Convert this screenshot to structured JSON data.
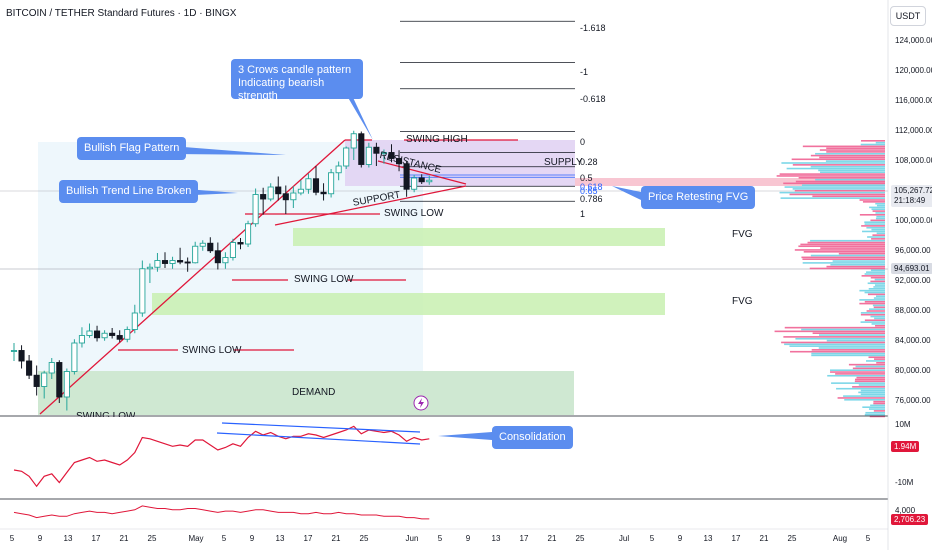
{
  "header": {
    "symbol": "BITCOIN / TETHER Standard Futures · 1D · BINGX",
    "currency": "USDT"
  },
  "colors": {
    "up": "#26a69a",
    "down": "#131722",
    "trend": "#e0173a",
    "fvg": "#c8f0b0",
    "demand": "#cfe8d2",
    "supply": "#e1d3f3",
    "callout": "#5b8def",
    "rsi": "#e0173a",
    "consolidation": "#2962ff"
  },
  "chart_data": {
    "type": "candlestick",
    "ylim": [
      74000,
      128000
    ],
    "price_ticks": [
      "124,000.00",
      "120,000.00",
      "116,000.00",
      "112,000.00",
      "108,000.00",
      "100,000.00",
      "96,000.00",
      "92,000.00",
      "88,000.00",
      "84,000.00",
      "80,000.00",
      "76,000.00"
    ],
    "price_tick_values": [
      124000,
      120000,
      116000,
      112000,
      108000,
      100000,
      96000,
      92000,
      88000,
      84000,
      80000,
      76000
    ],
    "x_ticks": [
      "5",
      "9",
      "13",
      "17",
      "21",
      "25",
      "May",
      "5",
      "9",
      "13",
      "17",
      "21",
      "25",
      "Jun",
      "5",
      "9",
      "13",
      "17",
      "21",
      "25",
      "Jul",
      "5",
      "9",
      "13",
      "17",
      "21",
      "25",
      "Aug",
      "5"
    ],
    "current_price": {
      "value": 105267.72,
      "label": "105,267.72",
      "countdown": "21:18:49"
    },
    "level_price": {
      "value": 94693.01,
      "label": "94,693.01"
    },
    "candles": [
      [
        82500,
        83600,
        81200,
        82600
      ],
      [
        82600,
        83300,
        80200,
        81200
      ],
      [
        81200,
        82000,
        78800,
        79300
      ],
      [
        79300,
        80600,
        76600,
        77800
      ],
      [
        77800,
        79900,
        76200,
        79600
      ],
      [
        79600,
        81600,
        78800,
        81000
      ],
      [
        81000,
        81300,
        75600,
        76400
      ],
      [
        76400,
        80200,
        74600,
        79800
      ],
      [
        79800,
        84100,
        79400,
        83600
      ],
      [
        83600,
        85700,
        83000,
        84600
      ],
      [
        84600,
        86200,
        84300,
        85200
      ],
      [
        85200,
        85900,
        83800,
        84300
      ],
      [
        84300,
        85300,
        83900,
        84900
      ],
      [
        84900,
        85600,
        84200,
        84600
      ],
      [
        84600,
        85300,
        83700,
        84100
      ],
      [
        84100,
        85800,
        83700,
        85400
      ],
      [
        85400,
        88700,
        84900,
        87600
      ],
      [
        87600,
        94600,
        87100,
        93500
      ],
      [
        93500,
        94200,
        91600,
        93700
      ],
      [
        93700,
        95600,
        93100,
        94600
      ],
      [
        94600,
        95700,
        93600,
        94200
      ],
      [
        94200,
        95100,
        93500,
        94600
      ],
      [
        94600,
        96300,
        94100,
        94400
      ],
      [
        94400,
        95000,
        93100,
        94300
      ],
      [
        94300,
        97100,
        94200,
        96500
      ],
      [
        96500,
        97300,
        95900,
        96900
      ],
      [
        96900,
        97700,
        95600,
        95900
      ],
      [
        95900,
        97000,
        93400,
        94300
      ],
      [
        94300,
        95700,
        93500,
        95000
      ],
      [
        95000,
        97500,
        94600,
        97000
      ],
      [
        97000,
        97600,
        96100,
        96800
      ],
      [
        96800,
        99900,
        96400,
        99500
      ],
      [
        99500,
        104200,
        99100,
        103400
      ],
      [
        103400,
        104300,
        100700,
        102800
      ],
      [
        102800,
        104900,
        102500,
        104400
      ],
      [
        104400,
        105800,
        102600,
        103500
      ],
      [
        103500,
        104600,
        100800,
        102700
      ],
      [
        102700,
        104500,
        101600,
        103600
      ],
      [
        103600,
        105300,
        103300,
        104100
      ],
      [
        104100,
        106200,
        103500,
        105500
      ],
      [
        105500,
        107200,
        103300,
        103700
      ],
      [
        103700,
        104900,
        102600,
        103500
      ],
      [
        103500,
        106800,
        103000,
        106300
      ],
      [
        106300,
        107800,
        105300,
        107200
      ],
      [
        107200,
        109800,
        106800,
        109600
      ],
      [
        109600,
        111900,
        108000,
        111500
      ],
      [
        111500,
        111800,
        107000,
        107400
      ],
      [
        107400,
        110300,
        107000,
        109700
      ],
      [
        109700,
        110300,
        107200,
        108900
      ],
      [
        108900,
        109400,
        107500,
        109000
      ],
      [
        109000,
        110100,
        107700,
        108200
      ],
      [
        108200,
        109300,
        106500,
        107500
      ],
      [
        107500,
        107800,
        103100,
        104100
      ],
      [
        104100,
        106000,
        103700,
        105600
      ],
      [
        105600,
        106100,
        104800,
        105100
      ],
      [
        105100,
        105900,
        104700,
        105300
      ]
    ],
    "rsi": [
      60,
      59,
      55,
      47,
      55,
      57,
      50,
      58,
      66,
      68,
      70,
      67,
      68,
      66,
      64,
      68,
      74,
      86,
      85,
      83,
      81,
      79,
      80,
      79,
      84,
      84,
      80,
      76,
      78,
      81,
      79,
      86,
      91,
      88,
      90,
      87,
      85,
      87,
      87,
      89,
      88,
      86,
      88,
      90,
      92,
      95,
      89,
      92,
      91,
      90,
      91,
      88,
      83,
      86,
      84,
      85
    ],
    "volume": [
      52,
      51,
      50,
      48,
      49,
      50,
      49,
      49,
      51,
      52,
      53,
      52,
      52,
      51,
      52,
      53,
      54,
      57,
      56,
      55,
      55,
      54,
      54,
      55,
      55,
      54,
      53,
      52,
      53,
      53,
      52,
      53,
      54,
      54,
      53,
      52,
      52,
      52,
      51,
      51,
      52,
      51,
      51,
      52,
      51,
      51,
      50,
      50,
      50,
      49,
      49,
      49,
      48,
      48,
      47,
      47
    ],
    "fib_levels": [
      {
        "label": "-1.618",
        "value": 126500
      },
      {
        "label": "-1",
        "value": 121000
      },
      {
        "label": "-0.618",
        "value": 117500
      },
      {
        "label": "0",
        "value": 111800
      },
      {
        "label": "0.28",
        "value": 109000
      },
      {
        "label": "0.5",
        "value": 107100
      },
      {
        "label": "0.618",
        "value": 106000
      },
      {
        "label": "0.65",
        "value": 105700
      },
      {
        "label": "0.786",
        "value": 104500
      },
      {
        "label": "1",
        "value": 102500
      }
    ]
  },
  "annotations": {
    "three_crows": "3 Crows candle pattern Indicating bearish strength",
    "bullish_flag": "Bullish Flag Pattern",
    "trend_broken": "Bullish Trend Line Broken",
    "retesting": "Price Retesting FVG",
    "consolidation": "Consolidation",
    "swing_high": "SWING HIGH",
    "resistance": "RESISTANCE",
    "support": "SUPPORT",
    "supply": "SUPPLY",
    "swing_low_1": "SWING LOW",
    "swing_low_2": "SWING LOW",
    "swing_low_3": "SWING LOW",
    "swing_low_4": "SWING LOW",
    "fvg_1": "FVG",
    "fvg_2": "FVG",
    "demand": "DEMAND"
  },
  "indicators": {
    "rsi_axis": [
      "10M",
      "0",
      "-10M"
    ],
    "rsi_tag": "1.94M",
    "vol_axis": "4,000",
    "vol_tag": "2,706.23"
  }
}
